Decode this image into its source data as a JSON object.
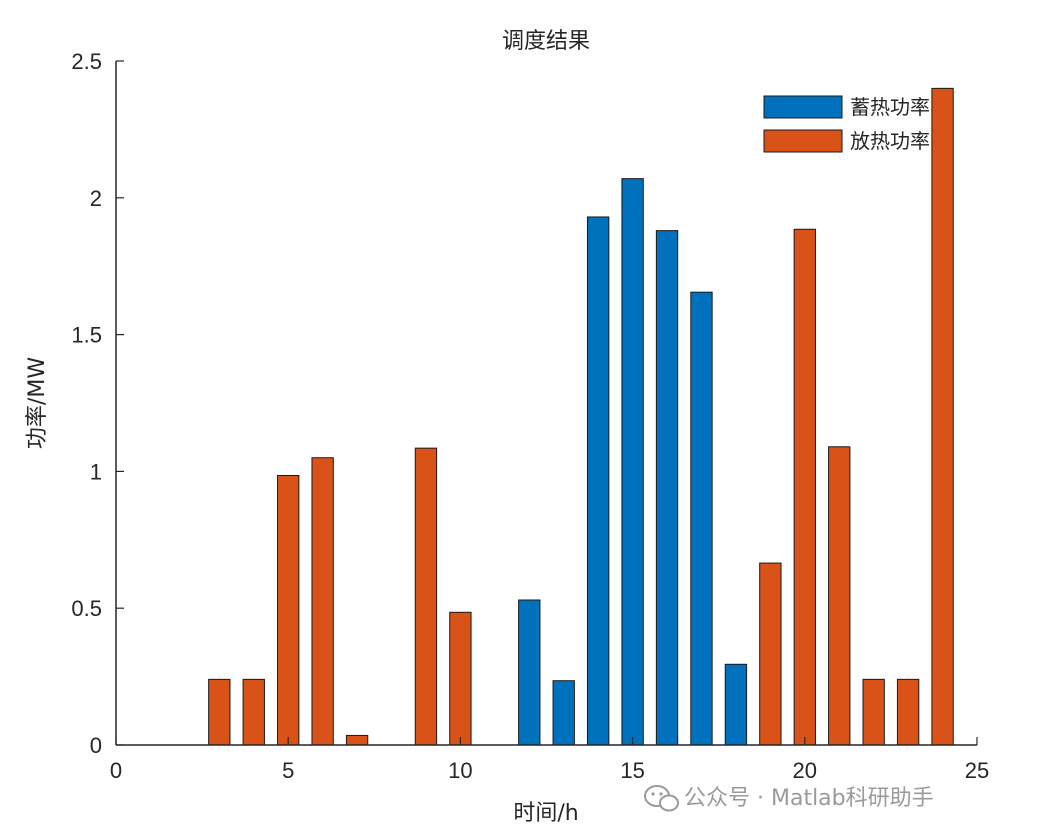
{
  "chart_data": {
    "type": "bar",
    "title": "调度结果",
    "xlabel": "时间/h",
    "ylabel": "功率/MW",
    "xlim": [
      0,
      25
    ],
    "ylim": [
      0,
      2.5
    ],
    "xticks": [
      "0",
      "5",
      "10",
      "15",
      "20",
      "25"
    ],
    "yticks": [
      "0",
      "0.5",
      "1",
      "1.5",
      "2",
      "2.5"
    ],
    "legend_position": "top-right",
    "series": [
      {
        "name": "蓄热功率",
        "color": "#0072BD",
        "points": [
          {
            "x": 12,
            "y": 0.53
          },
          {
            "x": 13,
            "y": 0.235
          },
          {
            "x": 14,
            "y": 1.93
          },
          {
            "x": 15,
            "y": 2.07
          },
          {
            "x": 16,
            "y": 1.88
          },
          {
            "x": 17,
            "y": 1.655
          },
          {
            "x": 18,
            "y": 0.295
          }
        ]
      },
      {
        "name": "放热功率",
        "color": "#D95319",
        "points": [
          {
            "x": 3,
            "y": 0.24
          },
          {
            "x": 4,
            "y": 0.24
          },
          {
            "x": 5,
            "y": 0.985
          },
          {
            "x": 6,
            "y": 1.05
          },
          {
            "x": 7,
            "y": 0.035
          },
          {
            "x": 9,
            "y": 1.085
          },
          {
            "x": 10,
            "y": 0.485
          },
          {
            "x": 19,
            "y": 0.665
          },
          {
            "x": 20,
            "y": 1.885
          },
          {
            "x": 21,
            "y": 1.09
          },
          {
            "x": 22,
            "y": 0.24
          },
          {
            "x": 23,
            "y": 0.24
          },
          {
            "x": 24,
            "y": 2.4
          }
        ]
      }
    ]
  },
  "watermark": {
    "text": "公众号 · Matlab科研助手",
    "icon": "wechat-icon"
  }
}
